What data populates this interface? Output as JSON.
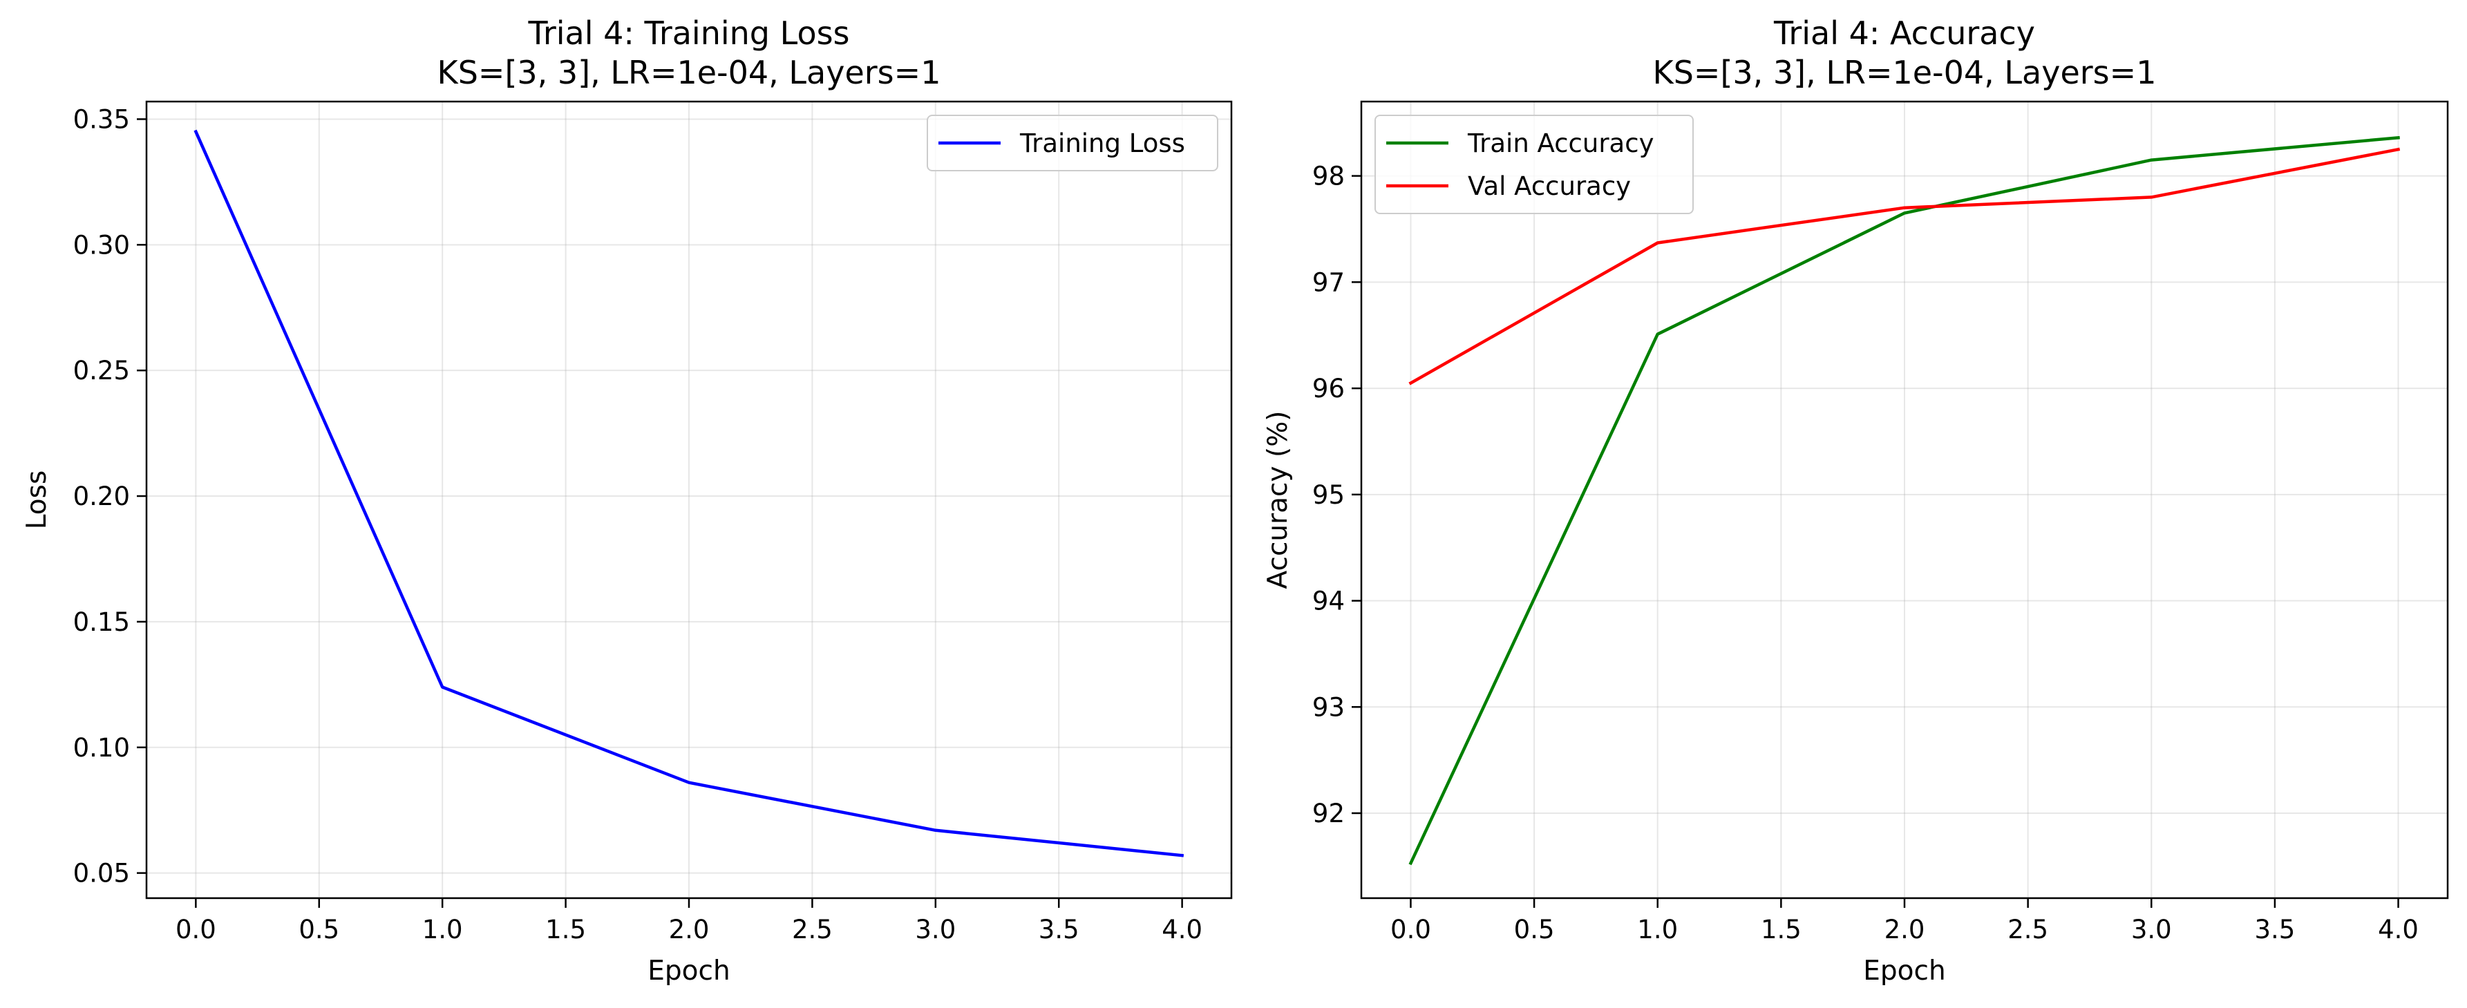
{
  "chart_data": [
    {
      "type": "line",
      "title": [
        "Trial 4: Training Loss",
        "KS=[3, 3], LR=1e-04, Layers=1"
      ],
      "xlabel": "Epoch",
      "ylabel": "Loss",
      "xlim": [
        -0.2,
        4.2
      ],
      "ylim": [
        0.04,
        0.357
      ],
      "xticks": [
        0.0,
        0.5,
        1.0,
        1.5,
        2.0,
        2.5,
        3.0,
        3.5,
        4.0
      ],
      "xtick_labels": [
        "0.0",
        "0.5",
        "1.0",
        "1.5",
        "2.0",
        "2.5",
        "3.0",
        "3.5",
        "4.0"
      ],
      "yticks": [
        0.05,
        0.1,
        0.15,
        0.2,
        0.25,
        0.3,
        0.35
      ],
      "ytick_labels": [
        "0.05",
        "0.10",
        "0.15",
        "0.20",
        "0.25",
        "0.30",
        "0.35"
      ],
      "grid": true,
      "legend_position": "upper right",
      "x": [
        0,
        1,
        2,
        3,
        4
      ],
      "series": [
        {
          "name": "Training Loss",
          "color": "#0000ff",
          "values": [
            0.345,
            0.124,
            0.086,
            0.067,
            0.057
          ]
        }
      ]
    },
    {
      "type": "line",
      "title": [
        "Trial 4: Accuracy",
        "KS=[3, 3], LR=1e-04, Layers=1"
      ],
      "xlabel": "Epoch",
      "ylabel": "Accuracy (%)",
      "xlim": [
        -0.2,
        4.2
      ],
      "ylim": [
        91.2,
        98.7
      ],
      "xticks": [
        0.0,
        0.5,
        1.0,
        1.5,
        2.0,
        2.5,
        3.0,
        3.5,
        4.0
      ],
      "xtick_labels": [
        "0.0",
        "0.5",
        "1.0",
        "1.5",
        "2.0",
        "2.5",
        "3.0",
        "3.5",
        "4.0"
      ],
      "yticks": [
        92,
        93,
        94,
        95,
        96,
        97,
        98
      ],
      "ytick_labels": [
        "92",
        "93",
        "94",
        "95",
        "96",
        "97",
        "98"
      ],
      "grid": true,
      "legend_position": "upper left",
      "x": [
        0,
        1,
        2,
        3,
        4
      ],
      "series": [
        {
          "name": "Train Accuracy",
          "color": "#008000",
          "values": [
            91.53,
            96.51,
            97.65,
            98.15,
            98.36
          ]
        },
        {
          "name": "Val Accuracy",
          "color": "#ff0000",
          "values": [
            96.05,
            97.37,
            97.7,
            97.8,
            98.25
          ]
        }
      ]
    }
  ]
}
